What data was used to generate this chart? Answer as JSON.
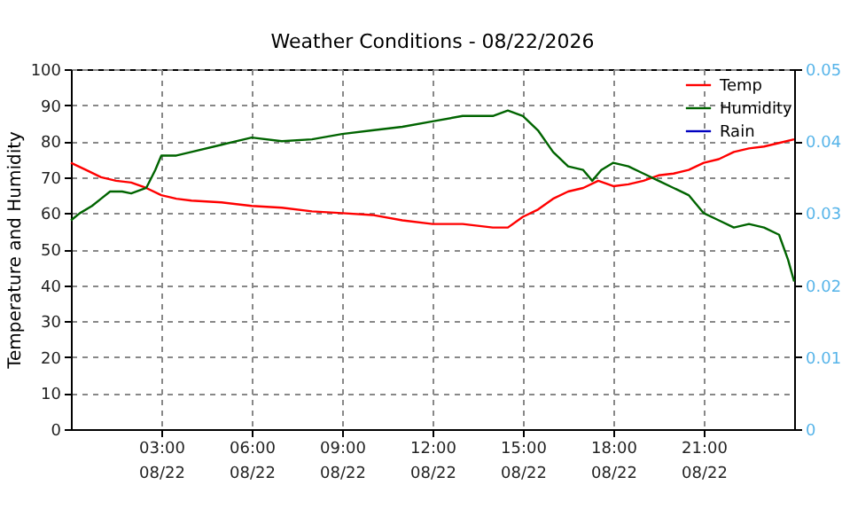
{
  "chart_data": {
    "type": "line",
    "title": "Weather Conditions - 08/22/2026",
    "ylabel": "Temperature and Humidity",
    "xlim": [
      "2026-08-22T00:00",
      "2026-08-23T00:00"
    ],
    "xticks": [
      {
        "value": "2026-08-22T03:00",
        "label": "03:00\n08/22"
      },
      {
        "value": "2026-08-22T06:00",
        "label": "06:00\n08/22"
      },
      {
        "value": "2026-08-22T09:00",
        "label": "09:00\n08/22"
      },
      {
        "value": "2026-08-22T12:00",
        "label": "12:00\n08/22"
      },
      {
        "value": "2026-08-22T15:00",
        "label": "15:00\n08/22"
      },
      {
        "value": "2026-08-22T18:00",
        "label": "18:00\n08/22"
      },
      {
        "value": "2026-08-22T21:00",
        "label": "21:00\n08/22"
      }
    ],
    "ylim": [
      0,
      100
    ],
    "yticks": [
      0,
      10,
      20,
      30,
      40,
      50,
      60,
      70,
      80,
      90,
      100
    ],
    "y2lim": [
      0,
      0.05
    ],
    "y2ticks": [
      0,
      0.01,
      0.02,
      0.03,
      0.04,
      0.05
    ],
    "grid": true,
    "legend": "top right",
    "marker": "none",
    "line_style": "solid",
    "series": [
      {
        "name": "Temp",
        "color": "#ff0000",
        "x": [
          "2026-08-22T00:00",
          "2026-08-22T00:30",
          "2026-08-22T01:00",
          "2026-08-22T01:30",
          "2026-08-22T02:00",
          "2026-08-22T02:30",
          "2026-08-22T03:00",
          "2026-08-22T03:30",
          "2026-08-22T04:00",
          "2026-08-22T05:00",
          "2026-08-22T06:00",
          "2026-08-22T07:00",
          "2026-08-22T08:00",
          "2026-08-22T09:00",
          "2026-08-22T10:00",
          "2026-08-22T11:00",
          "2026-08-22T12:00",
          "2026-08-22T13:00",
          "2026-08-22T14:00",
          "2026-08-22T14:30",
          "2026-08-22T15:00",
          "2026-08-22T15:30",
          "2026-08-22T16:00",
          "2026-08-22T16:30",
          "2026-08-22T17:00",
          "2026-08-22T17:30",
          "2026-08-22T18:00",
          "2026-08-22T18:30",
          "2026-08-22T19:00",
          "2026-08-22T19:30",
          "2026-08-22T20:00",
          "2026-08-22T20:30",
          "2026-08-22T21:00",
          "2026-08-22T21:30",
          "2026-08-22T22:00",
          "2026-08-22T22:30",
          "2026-08-22T23:00",
          "2026-08-22T23:30",
          "2026-08-23T00:00"
        ],
        "values": [
          74,
          72,
          70,
          69,
          68.5,
          67,
          65,
          64,
          63.5,
          63,
          62,
          61.5,
          60.5,
          60,
          59.5,
          58,
          57,
          57,
          56,
          56,
          59,
          61,
          64,
          66,
          67,
          69,
          67.5,
          68,
          69,
          70.5,
          71,
          72,
          74,
          75,
          77,
          78,
          78.5,
          79.5,
          80.5
        ]
      },
      {
        "name": "Humidity",
        "color": "#006400",
        "x": [
          "2026-08-22T00:00",
          "2026-08-22T00:18",
          "2026-08-22T00:42",
          "2026-08-22T01:00",
          "2026-08-22T01:18",
          "2026-08-22T01:42",
          "2026-08-22T02:00",
          "2026-08-22T02:30",
          "2026-08-22T02:48",
          "2026-08-22T03:00",
          "2026-08-22T03:30",
          "2026-08-22T04:00",
          "2026-08-22T05:00",
          "2026-08-22T06:00",
          "2026-08-22T07:00",
          "2026-08-22T08:00",
          "2026-08-22T09:00",
          "2026-08-22T10:00",
          "2026-08-22T11:00",
          "2026-08-22T12:00",
          "2026-08-22T13:00",
          "2026-08-22T14:00",
          "2026-08-22T14:30",
          "2026-08-22T15:00",
          "2026-08-22T15:30",
          "2026-08-22T16:00",
          "2026-08-22T16:30",
          "2026-08-22T17:00",
          "2026-08-22T17:18",
          "2026-08-22T17:36",
          "2026-08-22T18:00",
          "2026-08-22T18:30",
          "2026-08-22T19:00",
          "2026-08-22T19:30",
          "2026-08-22T20:00",
          "2026-08-22T20:30",
          "2026-08-22T21:00",
          "2026-08-22T21:30",
          "2026-08-22T22:00",
          "2026-08-22T22:30",
          "2026-08-22T23:00",
          "2026-08-22T23:30",
          "2026-08-22T23:48",
          "2026-08-23T00:00"
        ],
        "values": [
          58,
          60,
          62,
          64,
          66,
          66,
          65.5,
          67,
          72,
          76,
          76,
          77,
          79,
          81,
          80,
          80.5,
          82,
          83,
          84,
          85.5,
          87,
          87,
          88.5,
          87,
          83,
          77,
          73,
          72,
          69,
          72,
          74,
          73,
          71,
          69,
          67,
          65,
          60,
          58,
          56,
          57,
          56,
          54,
          47,
          41
        ]
      },
      {
        "name": "Rain",
        "color": "#0000c0",
        "axis": "y2"
      }
    ]
  }
}
